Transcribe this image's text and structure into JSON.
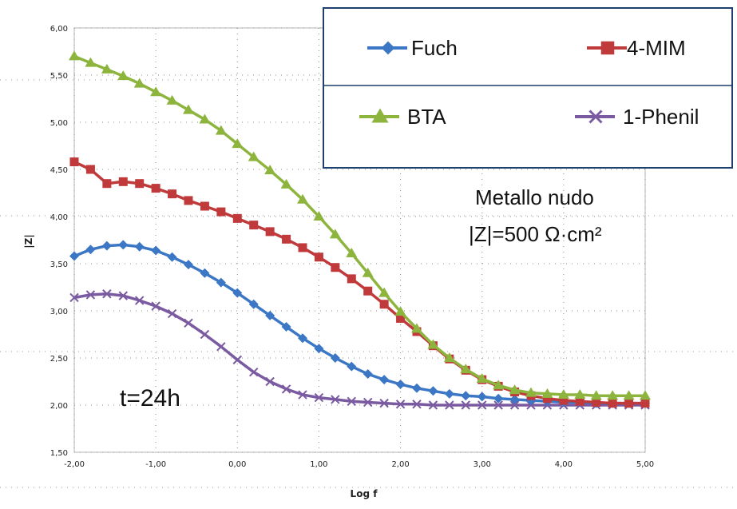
{
  "chart_data": {
    "type": "line",
    "xlabel": "Log f",
    "ylabel": "|Z|",
    "xlim": [
      -2,
      5
    ],
    "ylim": [
      1.5,
      6
    ],
    "x_ticks": [
      "-2,00",
      "-1,00",
      "0,00",
      "1,00",
      "2,00",
      "3,00",
      "4,00",
      "5,00"
    ],
    "y_ticks": [
      "1,50",
      "2,00",
      "2,50",
      "3,00",
      "3,50",
      "4,00",
      "4,50",
      "5,00",
      "5,50",
      "6,00"
    ],
    "grid": "dotted",
    "legend_position": "top-right",
    "series": [
      {
        "name": "Fuch",
        "color": "#3b77c4",
        "marker": "diamond",
        "points": [
          [
            -2.0,
            3.58
          ],
          [
            -1.8,
            3.65
          ],
          [
            -1.6,
            3.69
          ],
          [
            -1.4,
            3.7
          ],
          [
            -1.2,
            3.68
          ],
          [
            -1.0,
            3.64
          ],
          [
            -0.8,
            3.57
          ],
          [
            -0.6,
            3.49
          ],
          [
            -0.4,
            3.4
          ],
          [
            -0.2,
            3.3
          ],
          [
            0.0,
            3.19
          ],
          [
            0.2,
            3.07
          ],
          [
            0.4,
            2.95
          ],
          [
            0.6,
            2.83
          ],
          [
            0.8,
            2.71
          ],
          [
            1.0,
            2.6
          ],
          [
            1.2,
            2.5
          ],
          [
            1.4,
            2.41
          ],
          [
            1.6,
            2.33
          ],
          [
            1.8,
            2.27
          ],
          [
            2.0,
            2.22
          ],
          [
            2.2,
            2.18
          ],
          [
            2.4,
            2.15
          ],
          [
            2.6,
            2.12
          ],
          [
            2.8,
            2.1
          ],
          [
            3.0,
            2.09
          ],
          [
            3.2,
            2.07
          ],
          [
            3.4,
            2.06
          ],
          [
            3.6,
            2.05
          ],
          [
            3.8,
            2.04
          ],
          [
            4.0,
            2.03
          ],
          [
            4.2,
            2.03
          ],
          [
            4.4,
            2.02
          ],
          [
            4.6,
            2.02
          ],
          [
            4.8,
            2.02
          ],
          [
            5.0,
            2.02
          ]
        ]
      },
      {
        "name": "4-MIM",
        "color": "#c0393b",
        "marker": "square",
        "points": [
          [
            -2.0,
            4.58
          ],
          [
            -1.8,
            4.5
          ],
          [
            -1.6,
            4.35
          ],
          [
            -1.4,
            4.37
          ],
          [
            -1.2,
            4.35
          ],
          [
            -1.0,
            4.3
          ],
          [
            -0.8,
            4.24
          ],
          [
            -0.6,
            4.17
          ],
          [
            -0.4,
            4.11
          ],
          [
            -0.2,
            4.05
          ],
          [
            0.0,
            3.98
          ],
          [
            0.2,
            3.91
          ],
          [
            0.4,
            3.84
          ],
          [
            0.6,
            3.76
          ],
          [
            0.8,
            3.67
          ],
          [
            1.0,
            3.57
          ],
          [
            1.2,
            3.46
          ],
          [
            1.4,
            3.34
          ],
          [
            1.6,
            3.21
          ],
          [
            1.8,
            3.07
          ],
          [
            2.0,
            2.92
          ],
          [
            2.2,
            2.78
          ],
          [
            2.4,
            2.63
          ],
          [
            2.6,
            2.49
          ],
          [
            2.8,
            2.37
          ],
          [
            3.0,
            2.27
          ],
          [
            3.2,
            2.2
          ],
          [
            3.4,
            2.14
          ],
          [
            3.6,
            2.1
          ],
          [
            3.8,
            2.07
          ],
          [
            4.0,
            2.05
          ],
          [
            4.2,
            2.04
          ],
          [
            4.4,
            2.03
          ],
          [
            4.6,
            2.02
          ],
          [
            4.8,
            2.02
          ],
          [
            5.0,
            2.02
          ]
        ]
      },
      {
        "name": "BTA",
        "color": "#8db53e",
        "marker": "triangle",
        "points": [
          [
            -2.0,
            5.7
          ],
          [
            -1.8,
            5.63
          ],
          [
            -1.6,
            5.56
          ],
          [
            -1.4,
            5.49
          ],
          [
            -1.2,
            5.41
          ],
          [
            -1.0,
            5.32
          ],
          [
            -0.8,
            5.23
          ],
          [
            -0.6,
            5.13
          ],
          [
            -0.4,
            5.03
          ],
          [
            -0.2,
            4.91
          ],
          [
            0.0,
            4.77
          ],
          [
            0.2,
            4.63
          ],
          [
            0.4,
            4.49
          ],
          [
            0.6,
            4.34
          ],
          [
            0.8,
            4.18
          ],
          [
            1.0,
            4.0
          ],
          [
            1.2,
            3.81
          ],
          [
            1.4,
            3.61
          ],
          [
            1.6,
            3.4
          ],
          [
            1.8,
            3.19
          ],
          [
            2.0,
            2.99
          ],
          [
            2.2,
            2.81
          ],
          [
            2.4,
            2.64
          ],
          [
            2.6,
            2.5
          ],
          [
            2.8,
            2.38
          ],
          [
            3.0,
            2.28
          ],
          [
            3.2,
            2.21
          ],
          [
            3.4,
            2.16
          ],
          [
            3.6,
            2.13
          ],
          [
            3.8,
            2.12
          ],
          [
            4.0,
            2.11
          ],
          [
            4.2,
            2.11
          ],
          [
            4.4,
            2.1
          ],
          [
            4.6,
            2.1
          ],
          [
            4.8,
            2.1
          ],
          [
            5.0,
            2.1
          ]
        ]
      },
      {
        "name": "1-Phenil",
        "color": "#7a5aa0",
        "marker": "x",
        "points": [
          [
            -2.0,
            3.14
          ],
          [
            -1.8,
            3.17
          ],
          [
            -1.6,
            3.18
          ],
          [
            -1.4,
            3.16
          ],
          [
            -1.2,
            3.11
          ],
          [
            -1.0,
            3.05
          ],
          [
            -0.8,
            2.97
          ],
          [
            -0.6,
            2.87
          ],
          [
            -0.4,
            2.75
          ],
          [
            -0.2,
            2.62
          ],
          [
            0.0,
            2.48
          ],
          [
            0.2,
            2.35
          ],
          [
            0.4,
            2.25
          ],
          [
            0.6,
            2.17
          ],
          [
            0.8,
            2.11
          ],
          [
            1.0,
            2.08
          ],
          [
            1.2,
            2.06
          ],
          [
            1.4,
            2.04
          ],
          [
            1.6,
            2.03
          ],
          [
            1.8,
            2.02
          ],
          [
            2.0,
            2.01
          ],
          [
            2.2,
            2.01
          ],
          [
            2.4,
            2.0
          ],
          [
            2.6,
            2.0
          ],
          [
            2.8,
            2.0
          ],
          [
            3.0,
            2.0
          ],
          [
            3.2,
            2.0
          ],
          [
            3.4,
            2.0
          ],
          [
            3.6,
            2.0
          ],
          [
            3.8,
            2.0
          ],
          [
            4.0,
            2.0
          ],
          [
            4.2,
            2.0
          ],
          [
            4.4,
            2.0
          ],
          [
            4.6,
            2.0
          ],
          [
            4.8,
            2.0
          ],
          [
            5.0,
            2.0
          ]
        ]
      }
    ],
    "annotations": {
      "bare_metal_line1": "Metallo nudo",
      "bare_metal_line2": "|Z|=500 Ω·cm²",
      "time": "t=24h"
    }
  }
}
